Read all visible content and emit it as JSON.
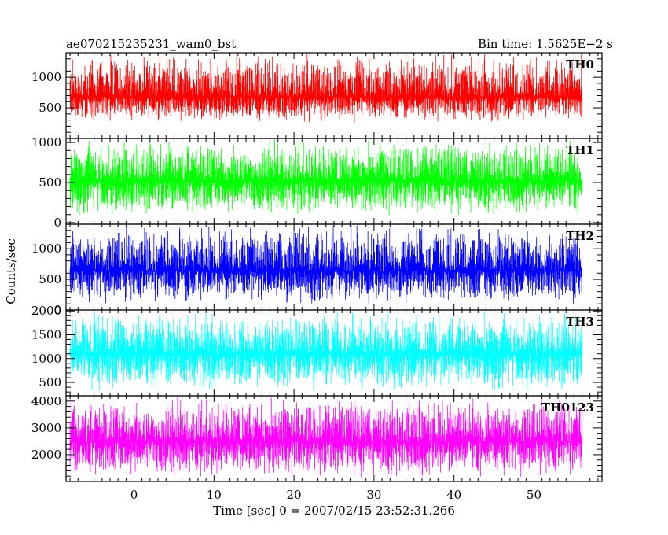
{
  "header": {
    "left_title": "ae070215235231_wam0_bst",
    "right_title": "Bin time: 1.5625E−2 s"
  },
  "chart_data": {
    "type": "line",
    "title": "ae070215235231_wam0_bst",
    "subtitle": "Bin time: 1.5625E−2 s",
    "xlabel": "Time [sec] 0 = 2007/02/15 23:52:31.266",
    "ylabel": "Counts/sec",
    "xlim": [
      -8.5,
      58.5
    ],
    "data_x_range": [
      -8,
      56
    ],
    "bin_time_s": 0.015625,
    "x_major_ticks": [
      0,
      10,
      20,
      30,
      40,
      50
    ],
    "grid": false,
    "panels": [
      {
        "name": "TH0",
        "color": "#ff0000",
        "ylim": [
          0,
          1400
        ],
        "y_major_ticks": [
          500,
          1000
        ],
        "mean": 680,
        "low": 250,
        "high": 1400
      },
      {
        "name": "TH1",
        "color": "#00ff00",
        "ylim": [
          -20,
          1050
        ],
        "y_major_ticks": [
          0,
          500,
          1000
        ],
        "mean": 520,
        "low": 80,
        "high": 1050
      },
      {
        "name": "TH2",
        "color": "#0000ff",
        "ylim": [
          0,
          1400
        ],
        "y_major_ticks": [
          0,
          500,
          1000
        ],
        "mean": 640,
        "low": 80,
        "high": 1400
      },
      {
        "name": "TH3",
        "color": "#00ffff",
        "ylim": [
          220,
          2020
        ],
        "y_major_ticks": [
          500,
          1000,
          1500,
          2000
        ],
        "mean": 1100,
        "low": 300,
        "high": 2000
      },
      {
        "name": "TH0123",
        "color": "#ff00ff",
        "ylim": [
          1000,
          4200
        ],
        "y_major_ticks": [
          2000,
          3000,
          4000
        ],
        "mean": 2500,
        "low": 1100,
        "high": 4200
      }
    ]
  }
}
